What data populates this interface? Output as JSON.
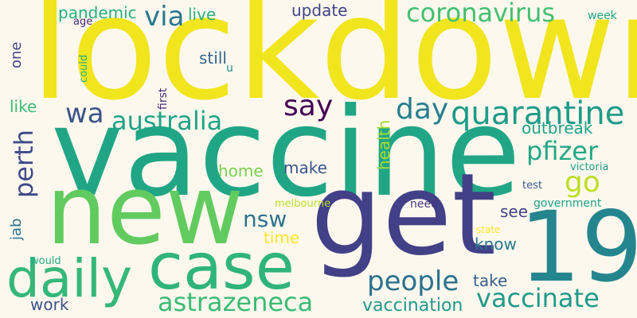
{
  "words": [
    {
      "id": "lockdown",
      "text": "lockdown",
      "color": "#f1e51d",
      "rotated": false
    },
    {
      "id": "vaccine",
      "text": "vaccine",
      "color": "#21a685",
      "rotated": false
    },
    {
      "id": "new",
      "text": "new",
      "color": "#62cb5f",
      "rotated": false
    },
    {
      "id": "get",
      "text": "get",
      "color": "#424086",
      "rotated": false
    },
    {
      "id": "19",
      "text": "19",
      "color": "#25858e",
      "rotated": false
    },
    {
      "id": "case",
      "text": "case",
      "color": "#2fb47c",
      "rotated": false
    },
    {
      "id": "daily",
      "text": "daily",
      "color": "#35b779",
      "rotated": false
    },
    {
      "id": "quarantine",
      "text": "quarantine",
      "color": "#1e9c89",
      "rotated": false
    },
    {
      "id": "coronavirus",
      "text": "coronavirus",
      "color": "#44bf70",
      "rotated": false
    },
    {
      "id": "australia",
      "text": "australia",
      "color": "#20a386",
      "rotated": false
    },
    {
      "id": "astrazeneca",
      "text": "astrazeneca",
      "color": "#3bbb75",
      "rotated": false
    },
    {
      "id": "vaccinate",
      "text": "vaccinate",
      "color": "#1f9a8a",
      "rotated": false
    },
    {
      "id": "people",
      "text": "people",
      "color": "#2c718e",
      "rotated": false
    },
    {
      "id": "pfizer",
      "text": "pfizer",
      "color": "#22a884",
      "rotated": false
    },
    {
      "id": "day",
      "text": "day",
      "color": "#277f8e",
      "rotated": false
    },
    {
      "id": "say",
      "text": "say",
      "color": "#440154",
      "rotated": false
    },
    {
      "id": "wa",
      "text": "wa",
      "color": "#3b528b",
      "rotated": false
    },
    {
      "id": "via",
      "text": "via",
      "color": "#2a788e",
      "rotated": false
    },
    {
      "id": "go",
      "text": "go",
      "color": "#bddf26",
      "rotated": false
    },
    {
      "id": "perth",
      "text": "perth",
      "color": "#3e4a89",
      "rotated": true
    },
    {
      "id": "nsw",
      "text": "nsw",
      "color": "#2c728e",
      "rotated": false
    },
    {
      "id": "vaccination",
      "text": "vaccination",
      "color": "#1f988b",
      "rotated": false
    },
    {
      "id": "pandemic",
      "text": "pandemic",
      "color": "#29af7f",
      "rotated": false
    },
    {
      "id": "live",
      "text": "live",
      "color": "#2ab07f",
      "rotated": false
    },
    {
      "id": "update",
      "text": "update",
      "color": "#414487",
      "rotated": false
    },
    {
      "id": "still",
      "text": "still",
      "color": "#31668e",
      "rotated": false
    },
    {
      "id": "outbreak",
      "text": "outbreak",
      "color": "#1fa088",
      "rotated": false
    },
    {
      "id": "health",
      "text": "health",
      "color": "#a8db34",
      "rotated": true
    },
    {
      "id": "home",
      "text": "home",
      "color": "#7ad151",
      "rotated": false
    },
    {
      "id": "make",
      "text": "make",
      "color": "#39568c",
      "rotated": false
    },
    {
      "id": "time",
      "text": "time",
      "color": "#fde725",
      "rotated": false
    },
    {
      "id": "see",
      "text": "see",
      "color": "#414487",
      "rotated": false
    },
    {
      "id": "know",
      "text": "know",
      "color": "#2a788e",
      "rotated": false
    },
    {
      "id": "take",
      "text": "take",
      "color": "#355f8d",
      "rotated": false
    },
    {
      "id": "work",
      "text": "work",
      "color": "#3b528b",
      "rotated": false
    },
    {
      "id": "like",
      "text": "like",
      "color": "#3dbc74",
      "rotated": false
    },
    {
      "id": "jab",
      "text": "jab",
      "color": "#2d708e",
      "rotated": true
    },
    {
      "id": "one",
      "text": "one",
      "color": "#404688",
      "rotated": true
    },
    {
      "id": "age",
      "text": "age",
      "color": "#482475",
      "rotated": false
    },
    {
      "id": "could",
      "text": "could",
      "color": "#29af7f",
      "rotated": true
    },
    {
      "id": "u",
      "text": "u",
      "color": "#23898e",
      "rotated": false
    },
    {
      "id": "first",
      "text": "first",
      "color": "#472d7b",
      "rotated": true
    },
    {
      "id": "week",
      "text": "week",
      "color": "#22a884",
      "rotated": false
    },
    {
      "id": "government",
      "text": "government",
      "color": "#1fa188",
      "rotated": false
    },
    {
      "id": "test",
      "text": "test",
      "color": "#38598c",
      "rotated": false
    },
    {
      "id": "victoria",
      "text": "victoria",
      "color": "#1f9e89",
      "rotated": false
    },
    {
      "id": "need",
      "text": "need",
      "color": "#453781",
      "rotated": false
    },
    {
      "id": "melbourne",
      "text": "melbourne",
      "color": "#b5de2b",
      "rotated": false
    },
    {
      "id": "state",
      "text": "state",
      "color": "#fde725",
      "rotated": false
    },
    {
      "id": "would",
      "text": "would",
      "color": "#25ac82",
      "rotated": false
    }
  ]
}
